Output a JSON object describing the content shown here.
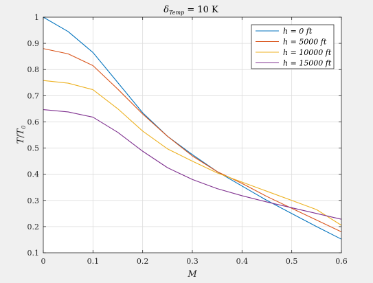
{
  "chart_data": {
    "type": "line",
    "title": "δ_Temp = 10 K",
    "title_main": "δ",
    "title_sub": "Temp",
    "title_rest": " = 10  K",
    "xlabel": "M",
    "ylabel_main": "T",
    "ylabel_sep": "/",
    "ylabel_main2": "T",
    "ylabel_sub": "0",
    "xlim": [
      0,
      0.6
    ],
    "ylim": [
      0.1,
      1.0
    ],
    "xticks": [
      0,
      0.1,
      0.2,
      0.3,
      0.4,
      0.5,
      0.6
    ],
    "xtick_labels": [
      "0",
      "0.1",
      "0.2",
      "0.3",
      "0.4",
      "0.5",
      "0.6"
    ],
    "yticks": [
      0.1,
      0.2,
      0.3,
      0.4,
      0.5,
      0.6,
      0.7,
      0.8,
      0.9,
      1.0
    ],
    "ytick_labels": [
      "0.1",
      "0.2",
      "0.3",
      "0.4",
      "0.5",
      "0.6",
      "0.7",
      "0.8",
      "0.9",
      "1"
    ],
    "grid": true,
    "legend_position": "top-right",
    "x": [
      0,
      0.05,
      0.1,
      0.15,
      0.2,
      0.25,
      0.3,
      0.35,
      0.4,
      0.45,
      0.5,
      0.55,
      0.6
    ],
    "series": [
      {
        "name": "h = 0  ft",
        "color": "#0072BD",
        "values": [
          1.0,
          0.945,
          0.865,
          0.75,
          0.635,
          0.545,
          0.475,
          0.41,
          0.355,
          0.3,
          0.25,
          0.2,
          0.152
        ]
      },
      {
        "name": "h = 5000  ft",
        "color": "#D95319",
        "values": [
          0.88,
          0.86,
          0.815,
          0.725,
          0.63,
          0.545,
          0.47,
          0.41,
          0.365,
          0.315,
          0.27,
          0.225,
          0.18
        ]
      },
      {
        "name": "h = 10000  ft",
        "color": "#EDB120",
        "values": [
          0.758,
          0.748,
          0.723,
          0.65,
          0.565,
          0.497,
          0.45,
          0.405,
          0.37,
          0.335,
          0.3,
          0.265,
          0.205
        ]
      },
      {
        "name": "h = 15000  ft",
        "color": "#7E2F8E",
        "values": [
          0.647,
          0.638,
          0.618,
          0.56,
          0.488,
          0.425,
          0.38,
          0.345,
          0.318,
          0.294,
          0.272,
          0.25,
          0.228
        ]
      }
    ]
  }
}
